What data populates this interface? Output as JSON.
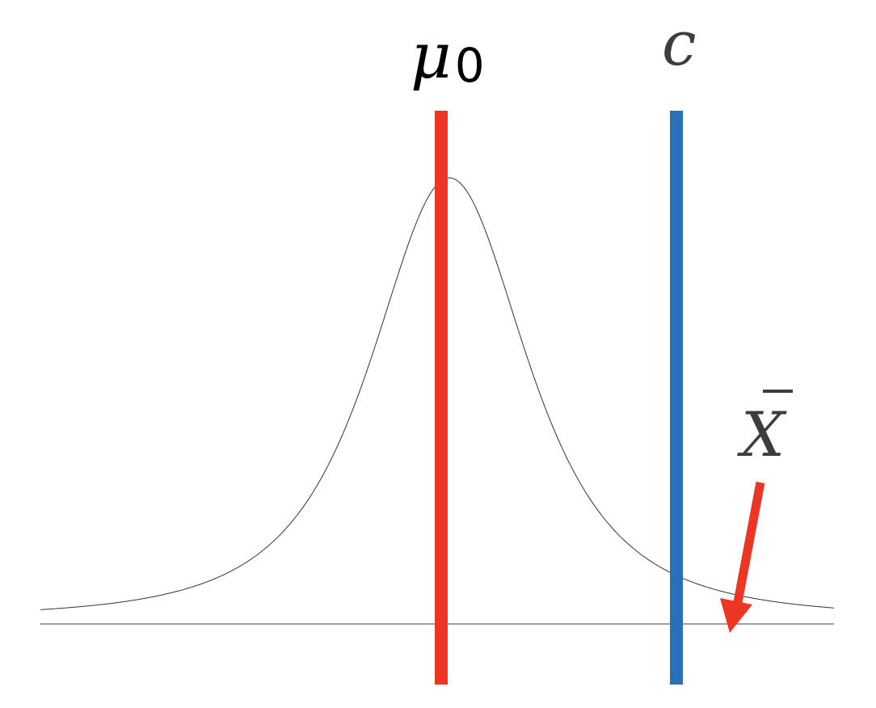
{
  "labels": {
    "mean_symbol": "μ",
    "mean_subscript": "0",
    "critical_symbol": "c",
    "sample_mean_symbol": "X"
  },
  "colors": {
    "mean_line": "#ee3524",
    "critical_line": "#2b6fb8",
    "arrow": "#ee3524",
    "curve": "#333333",
    "axis": "#666666",
    "label_dark": "#000000",
    "label_gray": "#3d3d3d"
  }
}
